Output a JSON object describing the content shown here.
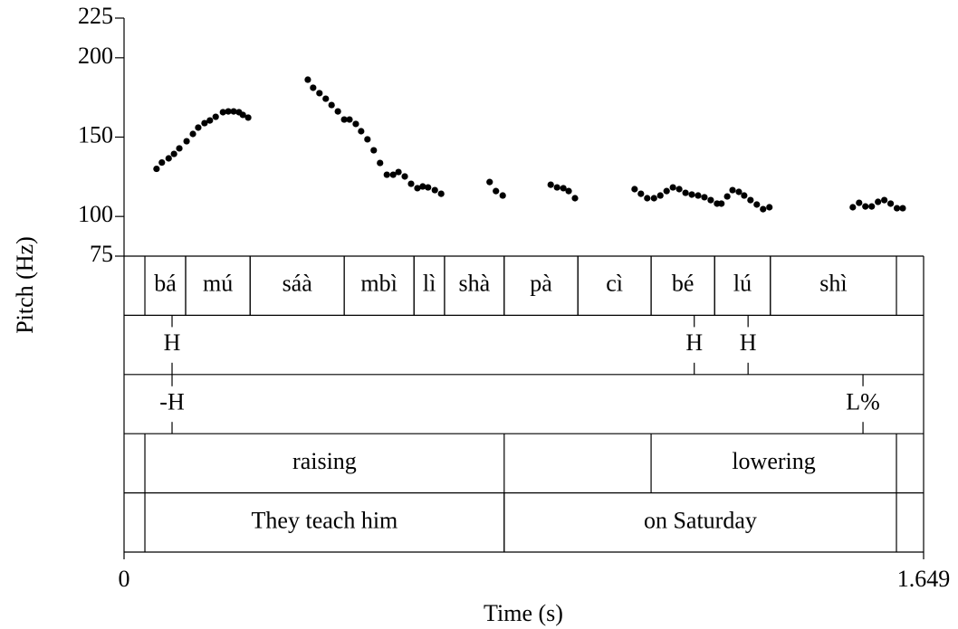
{
  "chart_data": {
    "type": "scatter",
    "xlabel": "Time (s)",
    "ylabel": "Pitch (Hz)",
    "xlim": [
      0,
      1.649
    ],
    "xticks": [
      0,
      1.649
    ],
    "ylim": [
      75,
      225
    ],
    "yticks": [
      75,
      100,
      150,
      200,
      225
    ],
    "color": "#000000",
    "x": [
      0.067,
      0.078,
      0.092,
      0.103,
      0.114,
      0.129,
      0.142,
      0.153,
      0.166,
      0.177,
      0.189,
      0.204,
      0.215,
      0.226,
      0.237,
      0.245,
      0.256,
      0.379,
      0.39,
      0.403,
      0.416,
      0.428,
      0.441,
      0.454,
      0.465,
      0.478,
      0.489,
      0.502,
      0.515,
      0.528,
      0.542,
      0.555,
      0.566,
      0.579,
      0.592,
      0.605,
      0.616,
      0.627,
      0.641,
      0.654,
      0.754,
      0.767,
      0.781,
      0.88,
      0.893,
      0.906,
      0.917,
      0.93,
      1.053,
      1.066,
      1.079,
      1.093,
      1.106,
      1.119,
      1.132,
      1.145,
      1.158,
      1.171,
      1.184,
      1.197,
      1.21,
      1.223,
      1.232,
      1.244,
      1.255,
      1.268,
      1.279,
      1.292,
      1.305,
      1.318,
      1.331,
      1.503,
      1.516,
      1.529,
      1.542,
      1.555,
      1.568,
      1.581,
      1.594,
      1.606
    ],
    "values": [
      130,
      134,
      136.6,
      139.4,
      142.9,
      147.4,
      152,
      156,
      158.8,
      160.5,
      162.8,
      165.7,
      166.2,
      166.2,
      165.7,
      164,
      162.3,
      186.2,
      181.1,
      177.7,
      174.2,
      170.2,
      166.2,
      161.1,
      161.1,
      158.3,
      153.7,
      148.6,
      141.7,
      133.7,
      126.3,
      126.3,
      128,
      125.2,
      120.6,
      117.8,
      118.9,
      118.3,
      116.6,
      114.3,
      121.7,
      116,
      113.2,
      120,
      118.3,
      117.8,
      116,
      111.5,
      117.2,
      114.3,
      111.5,
      111.5,
      113.2,
      116,
      118.3,
      117.2,
      114.9,
      113.8,
      113.2,
      112.1,
      110.3,
      108.1,
      108.1,
      112.6,
      116.6,
      115.5,
      113.2,
      110.3,
      107.5,
      104.6,
      105.8,
      105.8,
      108.6,
      106.3,
      106.3,
      109.2,
      110.3,
      108.1,
      105.2,
      105.2
    ],
    "tiers": [
      {
        "intervals": [
          {
            "start": 0.043,
            "end": 0.127,
            "text": "bá"
          },
          {
            "start": 0.127,
            "end": 0.26,
            "text": "mú"
          },
          {
            "start": 0.26,
            "end": 0.454,
            "text": "sáà"
          },
          {
            "start": 0.454,
            "end": 0.598,
            "text": "mbì"
          },
          {
            "start": 0.598,
            "end": 0.661,
            "text": "lì"
          },
          {
            "start": 0.661,
            "end": 0.784,
            "text": "shà"
          },
          {
            "start": 0.784,
            "end": 0.936,
            "text": "pà"
          },
          {
            "start": 0.936,
            "end": 1.087,
            "text": "cì"
          },
          {
            "start": 1.087,
            "end": 1.218,
            "text": "bé"
          },
          {
            "start": 1.218,
            "end": 1.333,
            "text": "lú"
          },
          {
            "start": 1.333,
            "end": 1.593,
            "text": "shì"
          }
        ]
      },
      {
        "points": [
          {
            "time": 0.099,
            "text": "H"
          },
          {
            "time": 1.176,
            "text": "H"
          },
          {
            "time": 1.287,
            "text": "H"
          }
        ]
      },
      {
        "points": [
          {
            "time": 0.099,
            "text": "-H"
          },
          {
            "time": 1.524,
            "text": "L%"
          }
        ]
      },
      {
        "intervals": [
          {
            "start": 0.043,
            "end": 0.784,
            "text": "raising"
          },
          {
            "start": 1.087,
            "end": 1.593,
            "text": "lowering"
          }
        ]
      },
      {
        "intervals": [
          {
            "start": 0.043,
            "end": 0.784,
            "text": "They teach him"
          },
          {
            "start": 0.784,
            "end": 1.593,
            "text": "on Saturday"
          }
        ]
      }
    ]
  }
}
